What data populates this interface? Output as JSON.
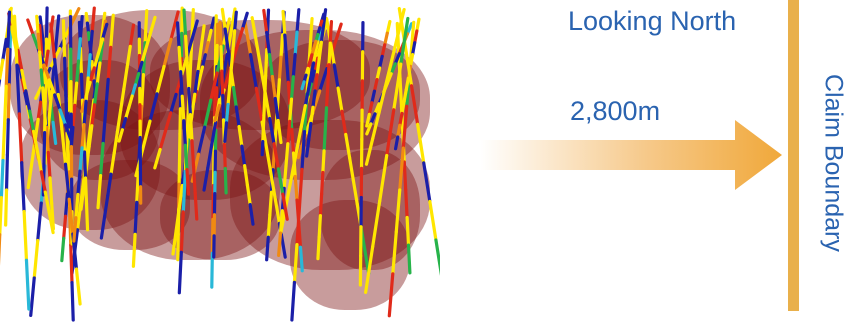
{
  "header": {
    "title": "Looking North"
  },
  "arrow": {
    "distance_label": "2,800m",
    "color": "#f0a83a"
  },
  "boundary": {
    "label": "Claim Boundary",
    "color": "#e9b04b"
  },
  "text_color": "#2a63b0",
  "model": {
    "shell_color": "#7b1212",
    "drillhole_colors": [
      "#ffe600",
      "#1b1fa8",
      "#e02a1a",
      "#f08a12",
      "#27b34a",
      "#29b8d8"
    ]
  }
}
